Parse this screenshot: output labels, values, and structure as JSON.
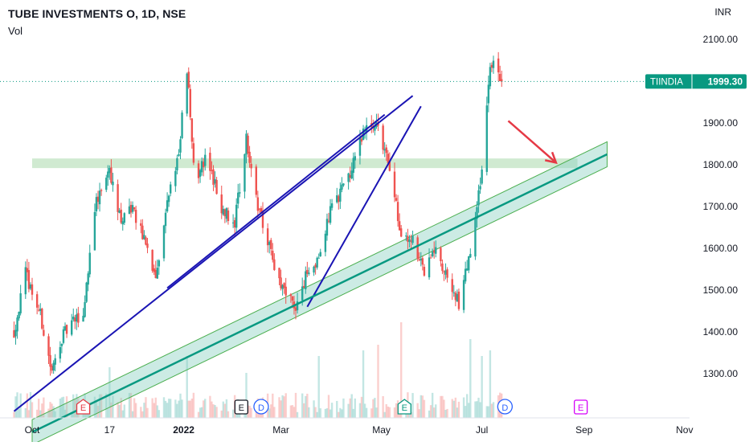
{
  "header": {
    "title": "TUBE INVESTMENTS O, 1D, NSE",
    "volume_label": "Vol",
    "currency": "INR"
  },
  "price_tag": {
    "symbol": "TIINDIA",
    "price": "1999.30",
    "value": 1999.3
  },
  "colors": {
    "up": "#26a69a",
    "down": "#ef5350",
    "trendline": "#1a14b4",
    "channel_line": "#089981",
    "channel_fill": "#8fd3c4",
    "zone_fill": "#c8e6c9",
    "arrow": "#e53945",
    "tag_bg": "#089981",
    "earnings": "#e91e63",
    "earnings_dark": "#131722",
    "dividend": "#2962ff"
  },
  "chart_data": {
    "type": "candlestick",
    "title": "TUBE INVESTMENTS O, 1D, NSE",
    "ylim": [
      1200,
      2150
    ],
    "yticks": [
      1300,
      1400,
      1500,
      1600,
      1700,
      1800,
      1900,
      2000,
      2100
    ],
    "ytick_labels": [
      "1300.00",
      "1400.00",
      "1500.00",
      "1600.00",
      "1700.00",
      "1800.00",
      "1900.00",
      "2000.00",
      "2100.00"
    ],
    "xticks": [
      "2021-10-01",
      "2021-11-17",
      "2022-01-01",
      "2022-03-01",
      "2022-05-01",
      "2022-07-01",
      "2022-07-11",
      "2022-09-01",
      "2022-11-01"
    ],
    "xtick_labels": [
      "Oct",
      "17",
      "2022",
      "Mar",
      "May",
      "Jul",
      "Jul",
      "Sep",
      "Nov"
    ],
    "shown_xtick_idx": [
      0,
      1,
      2,
      3,
      4,
      5,
      7,
      8
    ],
    "xlim": [
      "2021-09-20",
      "2022-12-01"
    ],
    "last_close": 1999.3,
    "price_path": [
      [
        "2021-09-20",
        1400
      ],
      [
        "2021-09-27",
        1540
      ],
      [
        "2021-10-06",
        1440
      ],
      [
        "2021-10-13",
        1300
      ],
      [
        "2021-10-18",
        1380
      ],
      [
        "2021-10-25",
        1420
      ],
      [
        "2021-11-01",
        1440
      ],
      [
        "2021-11-08",
        1700
      ],
      [
        "2021-11-17",
        1790
      ],
      [
        "2021-11-24",
        1660
      ],
      [
        "2021-12-01",
        1700
      ],
      [
        "2021-12-08",
        1620
      ],
      [
        "2021-12-15",
        1520
      ],
      [
        "2021-12-22",
        1700
      ],
      [
        "2021-12-29",
        1840
      ],
      [
        "2022-01-03",
        2020
      ],
      [
        "2022-01-08",
        1760
      ],
      [
        "2022-01-15",
        1820
      ],
      [
        "2022-01-24",
        1700
      ],
      [
        "2022-02-01",
        1660
      ],
      [
        "2022-02-08",
        1860
      ],
      [
        "2022-02-15",
        1700
      ],
      [
        "2022-02-22",
        1600
      ],
      [
        "2022-03-01",
        1500
      ],
      [
        "2022-03-10",
        1460
      ],
      [
        "2022-03-17",
        1540
      ],
      [
        "2022-03-24",
        1580
      ],
      [
        "2022-04-01",
        1700
      ],
      [
        "2022-04-10",
        1760
      ],
      [
        "2022-04-20",
        1880
      ],
      [
        "2022-04-29",
        1900
      ],
      [
        "2022-05-06",
        1780
      ],
      [
        "2022-05-13",
        1640
      ],
      [
        "2022-05-20",
        1620
      ],
      [
        "2022-05-27",
        1540
      ],
      [
        "2022-06-03",
        1600
      ],
      [
        "2022-06-10",
        1520
      ],
      [
        "2022-06-17",
        1470
      ],
      [
        "2022-06-24",
        1590
      ],
      [
        "2022-07-01",
        1780
      ],
      [
        "2022-07-06",
        2050
      ],
      [
        "2022-07-13",
        1999.3
      ]
    ],
    "volume": {
      "label": "Vol",
      "max": 2000000,
      "spikes": [
        [
          "2021-11-17",
          0.45
        ],
        [
          "2022-01-03",
          0.55
        ],
        [
          "2022-02-08",
          0.4
        ],
        [
          "2022-03-24",
          0.55
        ],
        [
          "2022-04-20",
          0.6
        ],
        [
          "2022-04-29",
          0.65
        ],
        [
          "2022-05-13",
          0.85
        ],
        [
          "2022-06-24",
          0.7
        ],
        [
          "2022-07-01",
          0.55
        ],
        [
          "2022-07-06",
          0.6
        ]
      ]
    },
    "drawings": {
      "trendlines": [
        {
          "from": [
            "2021-09-20",
            1210
          ],
          "to": [
            "2022-05-20",
            1965
          ]
        },
        {
          "from": [
            "2021-12-22",
            1505
          ],
          "to": [
            "2022-05-03",
            1920
          ]
        },
        {
          "from": [
            "2022-03-17",
            1460
          ],
          "to": [
            "2022-05-25",
            1940
          ]
        }
      ],
      "support_zone": {
        "from": "2021-10-01",
        "to": "2022-08-28",
        "y_low": 1792,
        "y_high": 1815
      },
      "channel": {
        "from": [
          "2021-10-01",
          1160
        ],
        "to": [
          "2022-09-15",
          1825
        ],
        "half_height": 30
      },
      "arrow": {
        "from": [
          "2022-07-17",
          1905
        ],
        "to": [
          "2022-08-15",
          1805
        ]
      }
    },
    "events": [
      {
        "date": "2021-11-01",
        "type": "earnings",
        "label": "E"
      },
      {
        "date": "2022-02-05",
        "type": "earnings",
        "label": "E"
      },
      {
        "date": "2022-02-17",
        "type": "dividend",
        "label": "D"
      },
      {
        "date": "2022-05-15",
        "type": "earnings",
        "label": "E"
      },
      {
        "date": "2022-07-15",
        "type": "dividend",
        "label": "D"
      },
      {
        "date": "2022-08-30",
        "type": "earnings",
        "label": "E"
      }
    ]
  }
}
